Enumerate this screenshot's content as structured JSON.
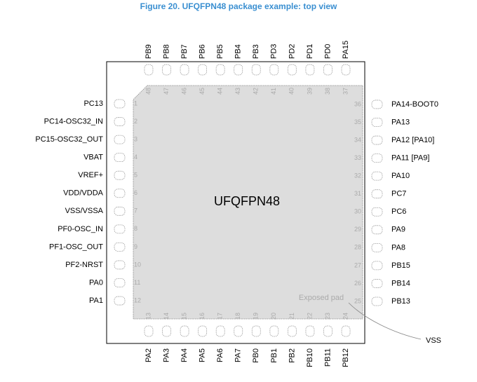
{
  "title": "Figure 20. UFQFPN48 package example: top view",
  "package_name": "UFQFPN48",
  "exposed_pad_label": "Exposed pad",
  "exposed_pad_signal": "VSS",
  "pins": {
    "left": [
      {
        "number": 1,
        "name": "PC13"
      },
      {
        "number": 2,
        "name": "PC14-OSC32_IN"
      },
      {
        "number": 3,
        "name": "PC15-OSC32_OUT"
      },
      {
        "number": 4,
        "name": "VBAT"
      },
      {
        "number": 5,
        "name": "VREF+"
      },
      {
        "number": 6,
        "name": "VDD/VDDA"
      },
      {
        "number": 7,
        "name": "VSS/VSSA"
      },
      {
        "number": 8,
        "name": "PF0-OSC_IN"
      },
      {
        "number": 9,
        "name": "PF1-OSC_OUT"
      },
      {
        "number": 10,
        "name": "PF2-NRST"
      },
      {
        "number": 11,
        "name": "PA0"
      },
      {
        "number": 12,
        "name": "PA1"
      }
    ],
    "bottom": [
      {
        "number": 13,
        "name": "PA2"
      },
      {
        "number": 14,
        "name": "PA3"
      },
      {
        "number": 15,
        "name": "PA4"
      },
      {
        "number": 16,
        "name": "PA5"
      },
      {
        "number": 17,
        "name": "PA6"
      },
      {
        "number": 18,
        "name": "PA7"
      },
      {
        "number": 19,
        "name": "PB0"
      },
      {
        "number": 20,
        "name": "PB1"
      },
      {
        "number": 21,
        "name": "PB2"
      },
      {
        "number": 22,
        "name": "PB10"
      },
      {
        "number": 23,
        "name": "PB11"
      },
      {
        "number": 24,
        "name": "PB12"
      }
    ],
    "right": [
      {
        "number": 25,
        "name": "PB13"
      },
      {
        "number": 26,
        "name": "PB14"
      },
      {
        "number": 27,
        "name": "PB15"
      },
      {
        "number": 28,
        "name": "PA8"
      },
      {
        "number": 29,
        "name": "PA9"
      },
      {
        "number": 30,
        "name": "PC6"
      },
      {
        "number": 31,
        "name": "PC7"
      },
      {
        "number": 32,
        "name": "PA10"
      },
      {
        "number": 33,
        "name": "PA11 [PA9]"
      },
      {
        "number": 34,
        "name": "PA12 [PA10]"
      },
      {
        "number": 35,
        "name": "PA13"
      },
      {
        "number": 36,
        "name": "PA14-BOOT0"
      }
    ],
    "top": [
      {
        "number": 37,
        "name": "PA15"
      },
      {
        "number": 38,
        "name": "PD0"
      },
      {
        "number": 39,
        "name": "PD1"
      },
      {
        "number": 40,
        "name": "PD2"
      },
      {
        "number": 41,
        "name": "PD3"
      },
      {
        "number": 42,
        "name": "PB3"
      },
      {
        "number": 43,
        "name": "PB4"
      },
      {
        "number": 44,
        "name": "PB5"
      },
      {
        "number": 45,
        "name": "PB6"
      },
      {
        "number": 46,
        "name": "PB7"
      },
      {
        "number": 47,
        "name": "PB8"
      },
      {
        "number": 48,
        "name": "PB9"
      }
    ]
  }
}
